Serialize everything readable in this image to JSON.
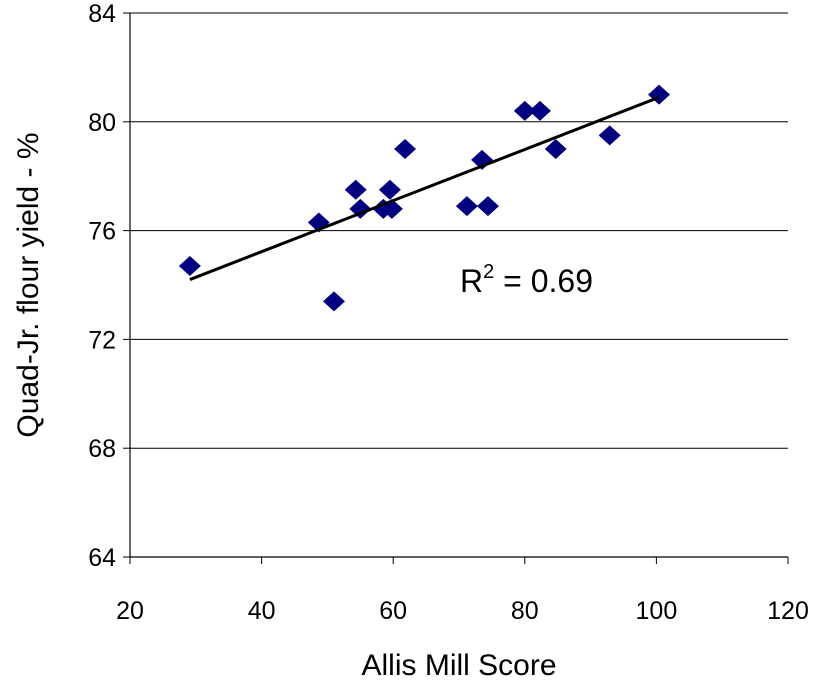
{
  "chart_data": {
    "type": "scatter",
    "x_label": "Allis Mill Score",
    "y_label": "Quad-Jr. flour yield - %",
    "x": [
      29.1,
      48.7,
      51.0,
      54.3,
      55.0,
      58.5,
      59.5,
      59.8,
      61.8,
      71.2,
      74.4,
      73.5,
      80.0,
      82.3,
      84.7,
      92.9,
      100.4
    ],
    "values": [
      74.7,
      76.3,
      73.4,
      77.5,
      76.8,
      76.8,
      77.5,
      76.8,
      79.0,
      76.9,
      76.9,
      78.6,
      80.4,
      80.4,
      79.0,
      79.5,
      81.0
    ],
    "color": "#000080",
    "trendline": {
      "x": [
        29.1,
        100.4
      ],
      "values": [
        74.2,
        80.9
      ],
      "color": "#000000"
    },
    "annotation": {
      "base": "R",
      "superscript": "2",
      "rest": " = 0.69"
    },
    "xlim": [
      20,
      120
    ],
    "xticks": [
      20,
      40,
      60,
      80,
      100,
      120
    ],
    "ylim": [
      64,
      84
    ],
    "yticks": [
      64,
      68,
      72,
      76,
      80,
      84
    ],
    "grid": true
  }
}
